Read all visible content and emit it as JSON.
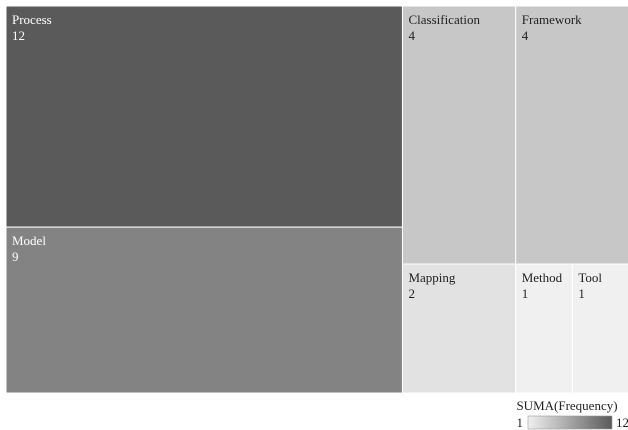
{
  "chart_data": {
    "type": "treemap",
    "items": [
      {
        "name": "Process",
        "value": 12
      },
      {
        "name": "Model",
        "value": 9
      },
      {
        "name": "Classification",
        "value": 4
      },
      {
        "name": "Framework",
        "value": 4
      },
      {
        "name": "Mapping",
        "value": 2
      },
      {
        "name": "Method",
        "value": 1
      },
      {
        "name": "Tool",
        "value": 1
      }
    ],
    "legend": {
      "title": "SUMA(Frequency)",
      "min_label": "1",
      "max_label": "12",
      "min_color": "#f0f0f0",
      "max_color": "#5a5a5a"
    },
    "dark_text_color": "#222222",
    "light_text_color": "#ffffff"
  }
}
